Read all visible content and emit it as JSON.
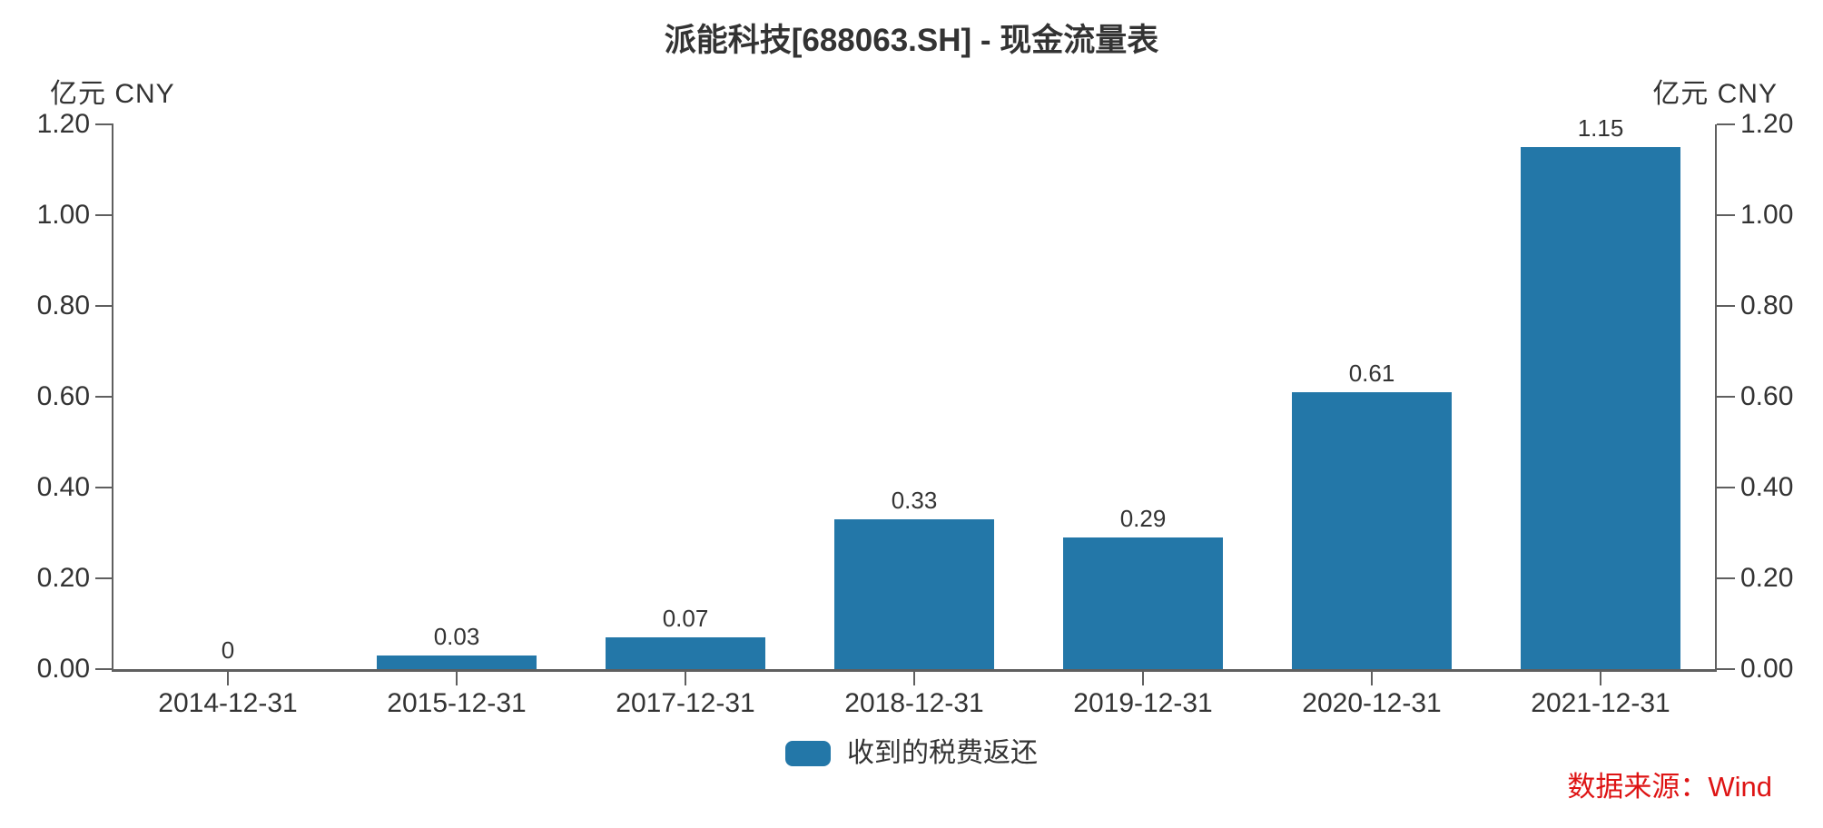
{
  "title": "派能科技[688063.SH] - 现金流量表",
  "unit_label": "亿元 CNY",
  "source_label": "数据来源：Wind",
  "colors": {
    "bar": "#2377a8",
    "axis": "#5f5f5f",
    "text": "#333333",
    "source": "#de1414"
  },
  "legend": {
    "label": "收到的税费返还",
    "swatch_color": "#2377a8"
  },
  "chart_data": {
    "type": "bar",
    "title": "派能科技[688063.SH] - 现金流量表",
    "categories": [
      "2014-12-31",
      "2015-12-31",
      "2017-12-31",
      "2018-12-31",
      "2019-12-31",
      "2020-12-31",
      "2021-12-31"
    ],
    "values": [
      0,
      0.03,
      0.07,
      0.33,
      0.29,
      0.61,
      1.15
    ],
    "value_labels": [
      "0",
      "0.03",
      "0.07",
      "0.33",
      "0.29",
      "0.61",
      "1.15"
    ],
    "series_name": "收到的税费返还",
    "ylabel_left": "亿元 CNY",
    "ylabel_right": "亿元 CNY",
    "ylim": [
      0,
      1.2
    ],
    "ytick_step": 0.2,
    "ytick_labels": [
      "0.00",
      "0.20",
      "0.40",
      "0.60",
      "0.80",
      "1.00",
      "1.20"
    ],
    "grid": false,
    "dual_axis": true,
    "legend_position": "bottom",
    "bar_color": "#2377a8"
  }
}
